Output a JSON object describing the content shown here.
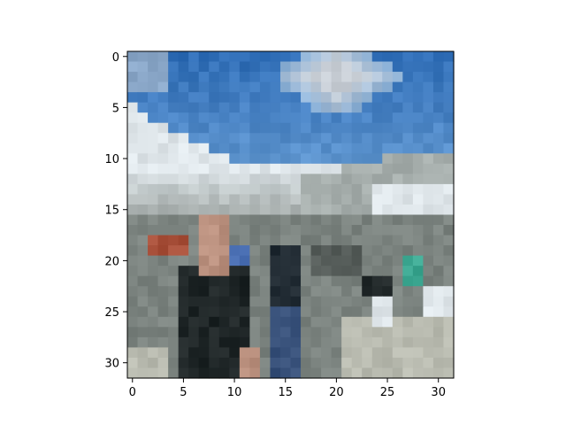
{
  "chart_data": {
    "type": "heatmap",
    "title": "",
    "xlabel": "",
    "ylabel": "",
    "xlim": [
      -0.5,
      31.5
    ],
    "ylim": [
      31.5,
      -0.5
    ],
    "grid": false,
    "x_ticks": [
      0,
      5,
      10,
      15,
      20,
      25,
      30
    ],
    "y_ticks": [
      0,
      5,
      10,
      15,
      20,
      25,
      30
    ],
    "x_tick_labels": [
      "0",
      "5",
      "10",
      "15",
      "20",
      "25",
      "30"
    ],
    "y_tick_labels": [
      "0",
      "5",
      "10",
      "15",
      "20",
      "25",
      "30"
    ],
    "grid_size": [
      32,
      32
    ],
    "palette": {
      "sky_light": "#6fa3d8",
      "sky_deep": "#2f6db6",
      "cloud": "#c9cfd6",
      "snow": "#dfe6ea",
      "rock": "#8c9490",
      "rock_dark": "#545b58",
      "shadow": "#1f2627",
      "skin": "#b98f7d",
      "red": "#a8503a",
      "blue": "#4a6fb3",
      "teal": "#3da892",
      "ground": "#b9bbb0"
    }
  }
}
